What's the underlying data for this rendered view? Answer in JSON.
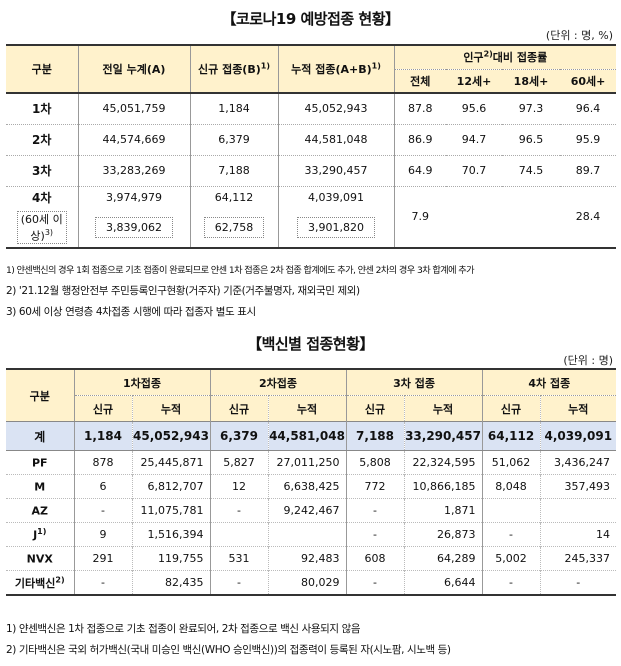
{
  "section1": {
    "title": "【코로나19 예방접종 현황】",
    "unit": "(단위 : 명, %)",
    "headers": {
      "category": "구분",
      "prev_cumulative": "전일 누계(A)",
      "new": "신규 접종(B)",
      "new_sup": "1)",
      "cumulative": "누적 접종(A+B)",
      "cumulative_sup": "1)",
      "ratio_prefix": "인구",
      "ratio_sup": "2)",
      "ratio_suffix": "대비 접종률",
      "ratio_cols": [
        "전체",
        "12세+",
        "18세+",
        "60세+"
      ]
    },
    "rows": [
      {
        "label": "1차",
        "prev": "45,051,759",
        "new": "1,184",
        "cum": "45,052,943",
        "all": "87.8",
        "r12": "95.6",
        "r18": "97.3",
        "r60": "96.4"
      },
      {
        "label": "2차",
        "prev": "44,574,669",
        "new": "6,379",
        "cum": "44,581,048",
        "all": "86.9",
        "r12": "94.7",
        "r18": "96.5",
        "r60": "95.9"
      },
      {
        "label": "3차",
        "prev": "33,283,269",
        "new": "7,188",
        "cum": "33,290,457",
        "all": "64.9",
        "r12": "70.7",
        "r18": "74.5",
        "r60": "89.7"
      },
      {
        "label": "4차",
        "prev": "3,974,979",
        "new": "64,112",
        "cum": "4,039,091",
        "all": "7.9",
        "r60": "28.4"
      }
    ],
    "sub_row": {
      "label_line1": "(60세 이",
      "label_line2": "상)",
      "label_sup": "3)",
      "prev": "3,839,062",
      "new": "62,758",
      "cum": "3,901,820"
    },
    "notes": [
      "1) 얀센백신의 경우 1회 접종으로 기초 접종이 완료되므로 얀센 1차 접종은 2차 접종 합계에도 추가, 얀센 2차의 경우 3차 합계에 추가",
      "2) '21.12월 행정안전부 주민등록인구현황(거주자) 기준(거주불명자, 재외국민 제외)",
      "3) 60세 이상 연령층 4차접종 시행에 따라 접종자 별도 표시"
    ]
  },
  "section2": {
    "title": "【백신별 접종현황】",
    "unit": "(단위 : 명)",
    "headers": {
      "category": "구분",
      "groups": [
        "1차접종",
        "2차접종",
        "3차 접종",
        "4차 접종"
      ],
      "sub_new": "신규",
      "sub_cum": "누적"
    },
    "total": {
      "label": "계",
      "values": [
        "1,184",
        "45,052,943",
        "6,379",
        "44,581,048",
        "7,188",
        "33,290,457",
        "64,112",
        "4,039,091"
      ]
    },
    "rows": [
      {
        "label": "PF",
        "sup": "",
        "values": [
          "878",
          "25,445,871",
          "5,827",
          "27,011,250",
          "5,808",
          "22,324,595",
          "51,062",
          "3,436,247"
        ]
      },
      {
        "label": "M",
        "sup": "",
        "values": [
          "6",
          "6,812,707",
          "12",
          "6,638,425",
          "772",
          "10,866,185",
          "8,048",
          "357,493"
        ]
      },
      {
        "label": "AZ",
        "sup": "",
        "values": [
          "-",
          "11,075,781",
          "-",
          "9,242,467",
          "-",
          "1,871",
          "",
          ""
        ]
      },
      {
        "label": "J",
        "sup": "1)",
        "values": [
          "9",
          "1,516,394",
          "",
          "",
          "-",
          "26,873",
          "-",
          "14"
        ]
      },
      {
        "label": "NVX",
        "sup": "",
        "values": [
          "291",
          "119,755",
          "531",
          "92,483",
          "608",
          "64,289",
          "5,002",
          "245,337"
        ]
      },
      {
        "label": "기타백신",
        "sup": "2)",
        "values": [
          "-",
          "82,435",
          "-",
          "80,029",
          "-",
          "6,644",
          "-",
          "-"
        ]
      }
    ],
    "notes": [
      "1) 얀센백신은 1차 접종으로 기초 접종이 완료되어, 2차 접종으로 백신 사용되지 않음",
      "2) 기타백신은 국외 허가백신(국내 미승인 백신(WHO 승인백신))의 접종력이 등록된 자(시노팜, 시노백 등)"
    ]
  }
}
